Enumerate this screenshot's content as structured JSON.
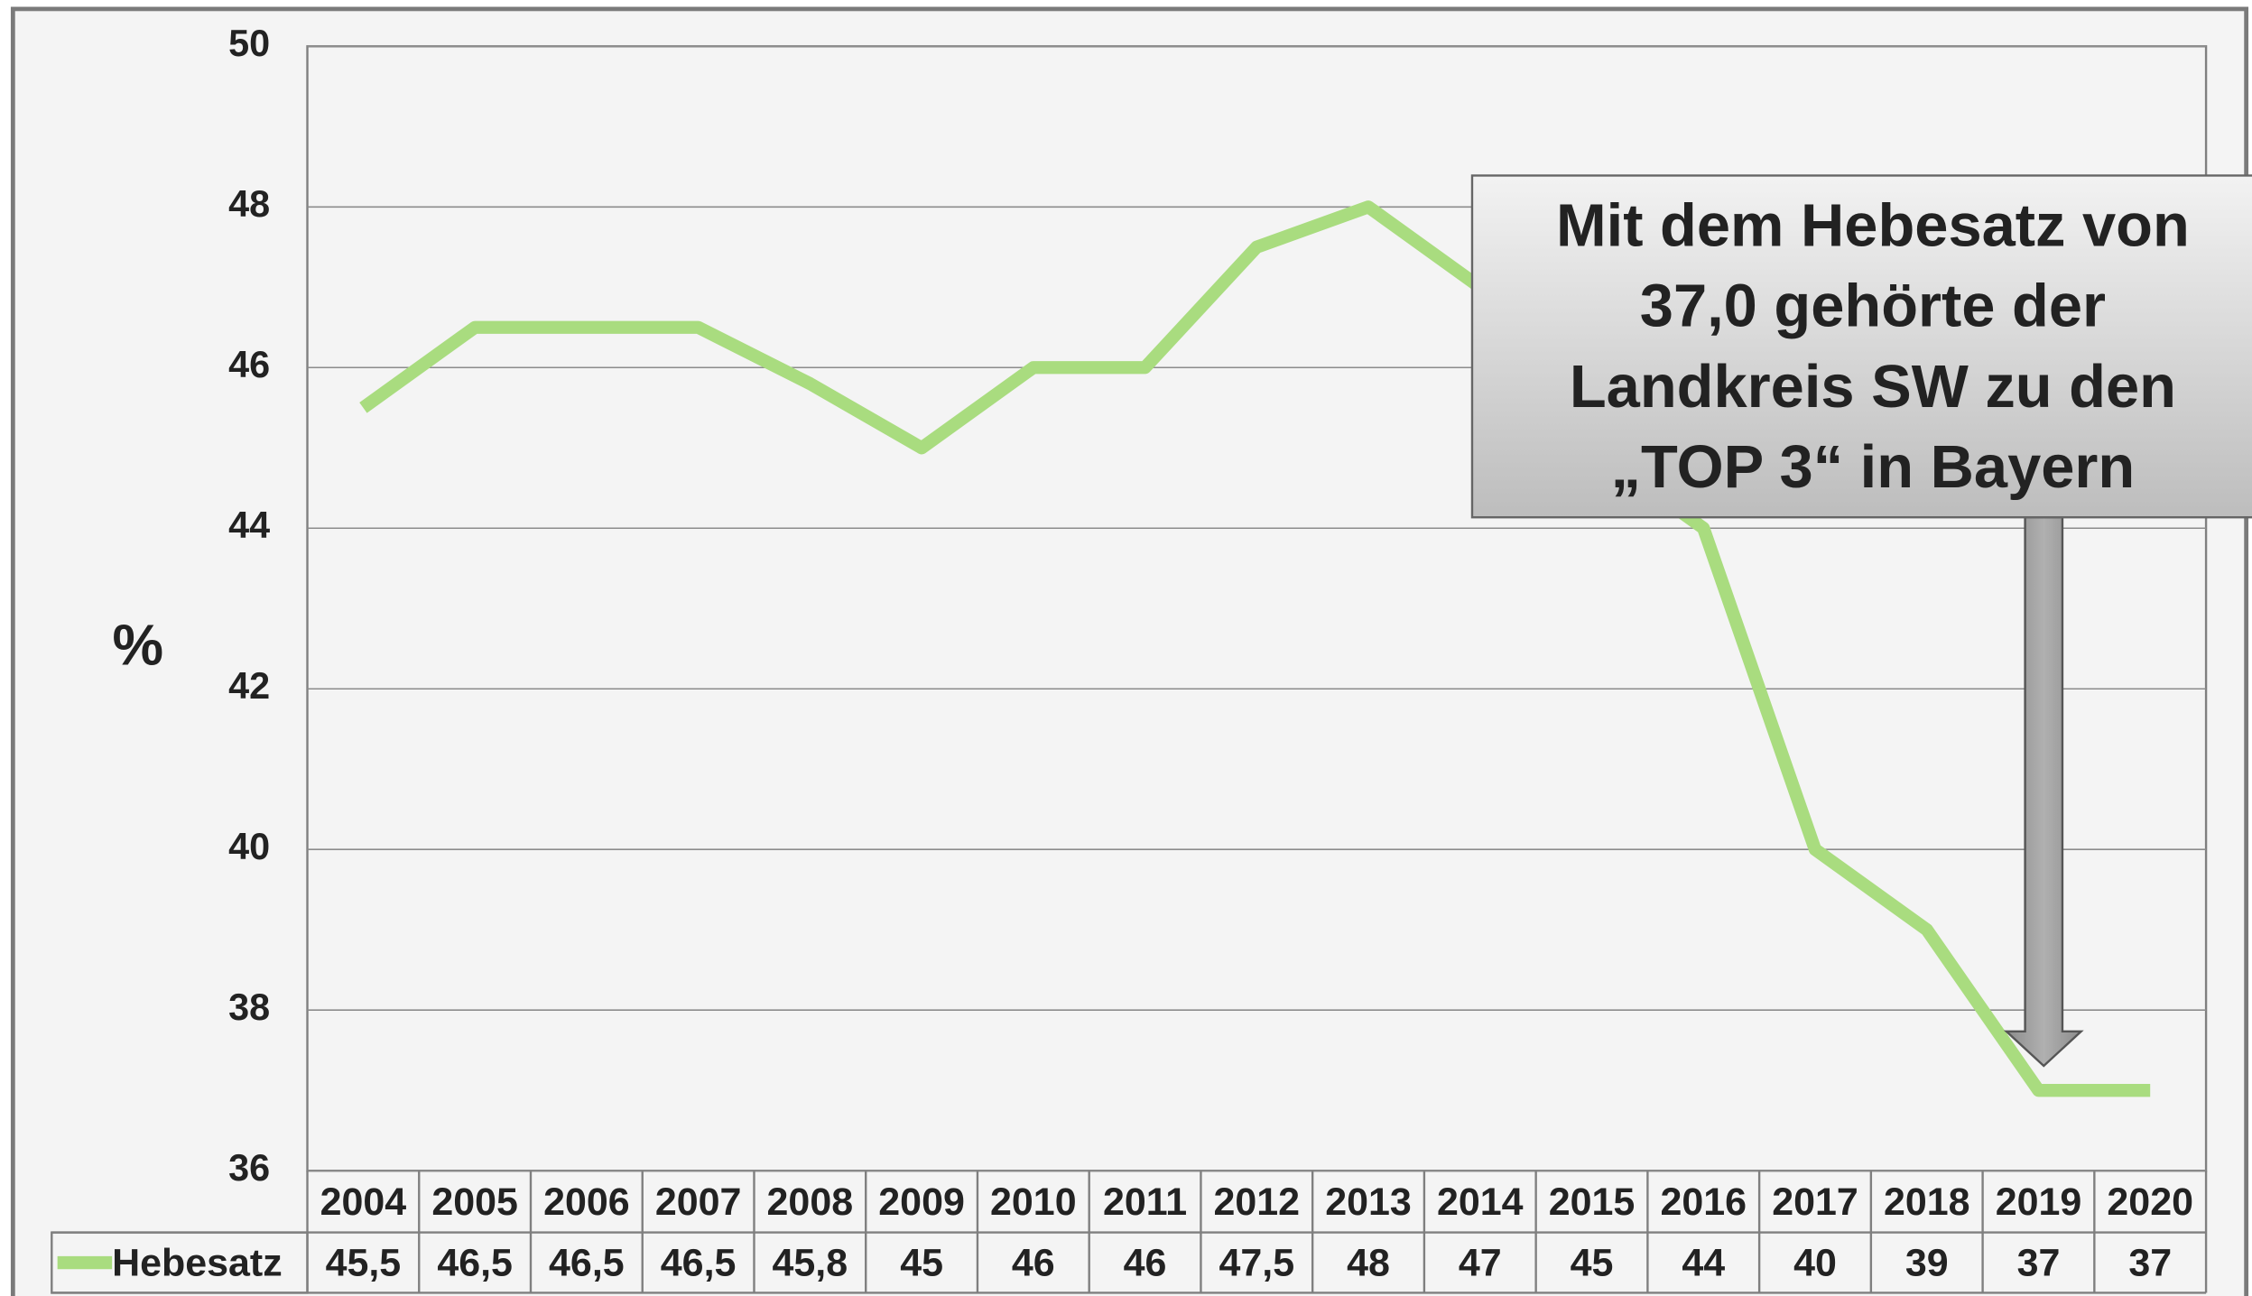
{
  "chart_data": {
    "type": "line",
    "ylabel": "%",
    "categories": [
      "2004",
      "2005",
      "2006",
      "2007",
      "2008",
      "2009",
      "2010",
      "2011",
      "2012",
      "2013",
      "2014",
      "2015",
      "2016",
      "2017",
      "2018",
      "2019",
      "2020"
    ],
    "series": [
      {
        "name": "Hebesatz",
        "color": "#a9dc7f",
        "values": [
          45.5,
          46.5,
          46.5,
          46.5,
          45.8,
          45,
          46,
          46,
          47.5,
          48,
          47,
          45,
          44,
          40,
          39,
          37,
          37
        ],
        "value_labels": [
          "45,5",
          "46,5",
          "46,5",
          "46,5",
          "45,8",
          "45",
          "46",
          "46",
          "47,5",
          "48",
          "47",
          "45",
          "44",
          "40",
          "39",
          "37",
          "37"
        ]
      }
    ],
    "ylim": [
      36,
      50
    ],
    "yticks": [
      36,
      38,
      40,
      42,
      44,
      46,
      48,
      50
    ],
    "grid": true,
    "annotation": [
      "Mit dem Hebesatz von",
      "37,0 gehörte der",
      "Landkreis SW zu den",
      "„TOP 3“ in Bayern"
    ]
  }
}
